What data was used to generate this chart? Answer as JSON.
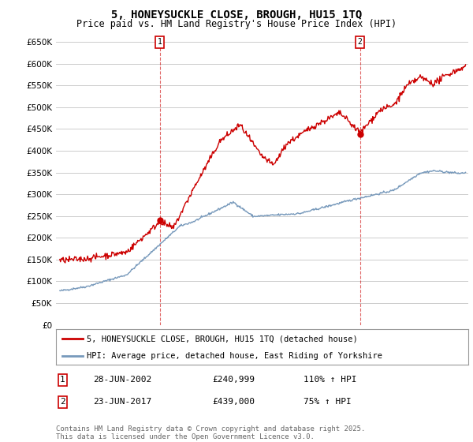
{
  "title": "5, HONEYSUCKLE CLOSE, BROUGH, HU15 1TQ",
  "subtitle": "Price paid vs. HM Land Registry's House Price Index (HPI)",
  "ylim": [
    0,
    650000
  ],
  "yticks": [
    0,
    50000,
    100000,
    150000,
    200000,
    250000,
    300000,
    350000,
    400000,
    450000,
    500000,
    550000,
    600000,
    650000
  ],
  "xlim_start": 1994.7,
  "xlim_end": 2025.6,
  "red_color": "#cc0000",
  "blue_color": "#7799bb",
  "background_color": "#ffffff",
  "grid_color": "#cccccc",
  "sale1_x": 2002.49,
  "sale1_y": 240999,
  "sale2_x": 2017.48,
  "sale2_y": 439000,
  "legend_line1": "5, HONEYSUCKLE CLOSE, BROUGH, HU15 1TQ (detached house)",
  "legend_line2": "HPI: Average price, detached house, East Riding of Yorkshire",
  "annotation1_date": "28-JUN-2002",
  "annotation1_price": "£240,999",
  "annotation1_hpi": "110% ↑ HPI",
  "annotation2_date": "23-JUN-2017",
  "annotation2_price": "£439,000",
  "annotation2_hpi": "75% ↑ HPI",
  "footer": "Contains HM Land Registry data © Crown copyright and database right 2025.\nThis data is licensed under the Open Government Licence v3.0.",
  "title_fontsize": 10,
  "subtitle_fontsize": 8.5,
  "tick_fontsize": 7.5,
  "legend_fontsize": 7.5,
  "annotation_fontsize": 8,
  "footer_fontsize": 6.5
}
